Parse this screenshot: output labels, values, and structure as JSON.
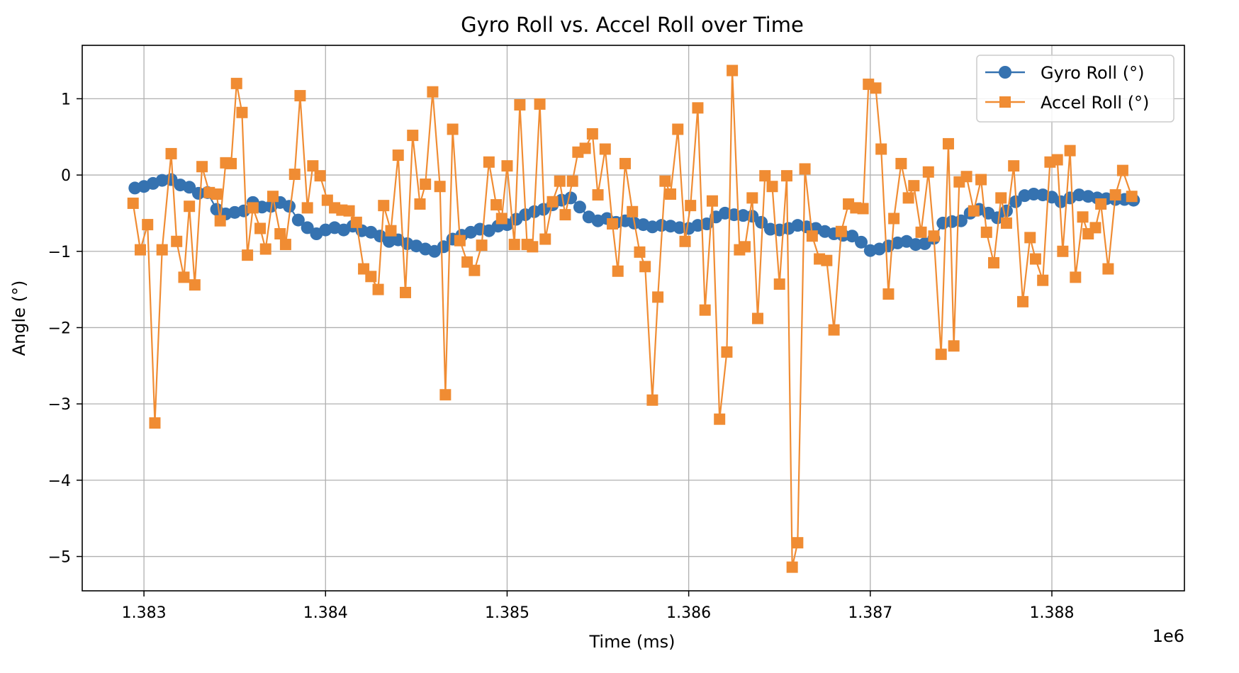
{
  "chart_data": {
    "type": "line",
    "title": "Gyro Roll vs. Accel Roll over Time",
    "xlabel": "Time (ms)",
    "ylabel": "Angle (°)",
    "x_offset_label": "1e6",
    "xlim": [
      1382.66,
      1388.73
    ],
    "ylim": [
      -5.45,
      1.7
    ],
    "x_ticks": [
      1383,
      1384,
      1385,
      1386,
      1387,
      1388
    ],
    "x_tick_labels": [
      "1.383",
      "1.384",
      "1.385",
      "1.386",
      "1.387",
      "1.388"
    ],
    "y_ticks": [
      1,
      0,
      -1,
      -2,
      -3,
      -4,
      -5
    ],
    "y_tick_labels": [
      "1",
      "0",
      "−1",
      "−2",
      "−3",
      "−4",
      "−5"
    ],
    "grid": true,
    "legend_position": "top-right",
    "series": [
      {
        "name": "Gyro Roll (°)",
        "color": "#3572b0",
        "marker": "circle",
        "points": [
          [
            1382.95,
            -0.17
          ],
          [
            1383.0,
            -0.15
          ],
          [
            1383.05,
            -0.11
          ],
          [
            1383.1,
            -0.07
          ],
          [
            1383.15,
            -0.06
          ],
          [
            1383.2,
            -0.13
          ],
          [
            1383.25,
            -0.16
          ],
          [
            1383.3,
            -0.24
          ],
          [
            1383.35,
            -0.23
          ],
          [
            1383.4,
            -0.45
          ],
          [
            1383.45,
            -0.51
          ],
          [
            1383.5,
            -0.49
          ],
          [
            1383.55,
            -0.47
          ],
          [
            1383.6,
            -0.36
          ],
          [
            1383.65,
            -0.42
          ],
          [
            1383.7,
            -0.41
          ],
          [
            1383.75,
            -0.36
          ],
          [
            1383.8,
            -0.41
          ],
          [
            1383.85,
            -0.59
          ],
          [
            1383.9,
            -0.69
          ],
          [
            1383.95,
            -0.77
          ],
          [
            1384.0,
            -0.72
          ],
          [
            1384.05,
            -0.69
          ],
          [
            1384.1,
            -0.72
          ],
          [
            1384.15,
            -0.67
          ],
          [
            1384.2,
            -0.73
          ],
          [
            1384.25,
            -0.75
          ],
          [
            1384.3,
            -0.8
          ],
          [
            1384.35,
            -0.87
          ],
          [
            1384.4,
            -0.85
          ],
          [
            1384.45,
            -0.9
          ],
          [
            1384.5,
            -0.93
          ],
          [
            1384.55,
            -0.97
          ],
          [
            1384.6,
            -1.0
          ],
          [
            1384.65,
            -0.94
          ],
          [
            1384.7,
            -0.84
          ],
          [
            1384.75,
            -0.79
          ],
          [
            1384.8,
            -0.75
          ],
          [
            1384.85,
            -0.71
          ],
          [
            1384.9,
            -0.73
          ],
          [
            1384.95,
            -0.67
          ],
          [
            1385.0,
            -0.65
          ],
          [
            1385.05,
            -0.58
          ],
          [
            1385.1,
            -0.52
          ],
          [
            1385.15,
            -0.48
          ],
          [
            1385.2,
            -0.45
          ],
          [
            1385.25,
            -0.39
          ],
          [
            1385.3,
            -0.33
          ],
          [
            1385.35,
            -0.3
          ],
          [
            1385.4,
            -0.42
          ],
          [
            1385.45,
            -0.55
          ],
          [
            1385.5,
            -0.6
          ],
          [
            1385.55,
            -0.57
          ],
          [
            1385.6,
            -0.62
          ],
          [
            1385.65,
            -0.6
          ],
          [
            1385.7,
            -0.63
          ],
          [
            1385.75,
            -0.65
          ],
          [
            1385.8,
            -0.68
          ],
          [
            1385.85,
            -0.66
          ],
          [
            1385.9,
            -0.67
          ],
          [
            1385.95,
            -0.69
          ],
          [
            1386.0,
            -0.7
          ],
          [
            1386.05,
            -0.66
          ],
          [
            1386.1,
            -0.64
          ],
          [
            1386.15,
            -0.55
          ],
          [
            1386.2,
            -0.5
          ],
          [
            1386.25,
            -0.52
          ],
          [
            1386.3,
            -0.53
          ],
          [
            1386.35,
            -0.54
          ],
          [
            1386.4,
            -0.62
          ],
          [
            1386.45,
            -0.71
          ],
          [
            1386.5,
            -0.72
          ],
          [
            1386.55,
            -0.7
          ],
          [
            1386.6,
            -0.66
          ],
          [
            1386.65,
            -0.68
          ],
          [
            1386.7,
            -0.7
          ],
          [
            1386.75,
            -0.74
          ],
          [
            1386.8,
            -0.77
          ],
          [
            1386.85,
            -0.79
          ],
          [
            1386.9,
            -0.8
          ],
          [
            1386.95,
            -0.88
          ],
          [
            1387.0,
            -0.99
          ],
          [
            1387.05,
            -0.97
          ],
          [
            1387.1,
            -0.93
          ],
          [
            1387.15,
            -0.89
          ],
          [
            1387.2,
            -0.87
          ],
          [
            1387.25,
            -0.91
          ],
          [
            1387.3,
            -0.9
          ],
          [
            1387.35,
            -0.83
          ],
          [
            1387.4,
            -0.63
          ],
          [
            1387.45,
            -0.61
          ],
          [
            1387.5,
            -0.6
          ],
          [
            1387.55,
            -0.5
          ],
          [
            1387.6,
            -0.45
          ],
          [
            1387.65,
            -0.5
          ],
          [
            1387.7,
            -0.56
          ],
          [
            1387.75,
            -0.47
          ],
          [
            1387.8,
            -0.35
          ],
          [
            1387.85,
            -0.27
          ],
          [
            1387.9,
            -0.25
          ],
          [
            1387.95,
            -0.26
          ],
          [
            1388.0,
            -0.29
          ],
          [
            1388.05,
            -0.35
          ],
          [
            1388.1,
            -0.3
          ],
          [
            1388.15,
            -0.26
          ],
          [
            1388.2,
            -0.28
          ],
          [
            1388.25,
            -0.3
          ],
          [
            1388.3,
            -0.31
          ],
          [
            1388.35,
            -0.32
          ],
          [
            1388.4,
            -0.32
          ],
          [
            1388.45,
            -0.33
          ]
        ]
      },
      {
        "name": "Accel Roll (°)",
        "color": "#f08c33",
        "marker": "square",
        "points": [
          [
            1382.94,
            -0.37
          ],
          [
            1382.98,
            -0.98
          ],
          [
            1383.02,
            -0.65
          ],
          [
            1383.06,
            -3.25
          ],
          [
            1383.1,
            -0.98
          ],
          [
            1383.15,
            0.28
          ],
          [
            1383.18,
            -0.87
          ],
          [
            1383.22,
            -1.34
          ],
          [
            1383.25,
            -0.41
          ],
          [
            1383.28,
            -1.44
          ],
          [
            1383.32,
            0.11
          ],
          [
            1383.36,
            -0.23
          ],
          [
            1383.4,
            -0.25
          ],
          [
            1383.42,
            -0.6
          ],
          [
            1383.45,
            0.16
          ],
          [
            1383.48,
            0.15
          ],
          [
            1383.51,
            1.2
          ],
          [
            1383.54,
            0.82
          ],
          [
            1383.57,
            -1.05
          ],
          [
            1383.6,
            -0.43
          ],
          [
            1383.64,
            -0.7
          ],
          [
            1383.67,
            -0.97
          ],
          [
            1383.71,
            -0.28
          ],
          [
            1383.75,
            -0.77
          ],
          [
            1383.78,
            -0.91
          ],
          [
            1383.83,
            0.01
          ],
          [
            1383.86,
            1.04
          ],
          [
            1383.9,
            -0.43
          ],
          [
            1383.93,
            0.12
          ],
          [
            1383.97,
            -0.01
          ],
          [
            1384.01,
            -0.33
          ],
          [
            1384.05,
            -0.43
          ],
          [
            1384.09,
            -0.46
          ],
          [
            1384.13,
            -0.47
          ],
          [
            1384.17,
            -0.62
          ],
          [
            1384.21,
            -1.23
          ],
          [
            1384.25,
            -1.33
          ],
          [
            1384.29,
            -1.5
          ],
          [
            1384.32,
            -0.4
          ],
          [
            1384.36,
            -0.73
          ],
          [
            1384.4,
            0.26
          ],
          [
            1384.44,
            -1.54
          ],
          [
            1384.48,
            0.52
          ],
          [
            1384.52,
            -0.38
          ],
          [
            1384.55,
            -0.12
          ],
          [
            1384.59,
            1.09
          ],
          [
            1384.63,
            -0.15
          ],
          [
            1384.66,
            -2.88
          ],
          [
            1384.7,
            0.6
          ],
          [
            1384.74,
            -0.86
          ],
          [
            1384.78,
            -1.14
          ],
          [
            1384.82,
            -1.25
          ],
          [
            1384.86,
            -0.92
          ],
          [
            1384.9,
            0.17
          ],
          [
            1384.94,
            -0.39
          ],
          [
            1384.97,
            -0.57
          ],
          [
            1385.0,
            0.12
          ],
          [
            1385.04,
            -0.91
          ],
          [
            1385.07,
            0.92
          ],
          [
            1385.11,
            -0.91
          ],
          [
            1385.14,
            -0.94
          ],
          [
            1385.18,
            0.93
          ],
          [
            1385.21,
            -0.84
          ],
          [
            1385.25,
            -0.35
          ],
          [
            1385.29,
            -0.08
          ],
          [
            1385.32,
            -0.52
          ],
          [
            1385.36,
            -0.08
          ],
          [
            1385.39,
            0.3
          ],
          [
            1385.43,
            0.35
          ],
          [
            1385.47,
            0.54
          ],
          [
            1385.5,
            -0.26
          ],
          [
            1385.54,
            0.34
          ],
          [
            1385.58,
            -0.64
          ],
          [
            1385.61,
            -1.26
          ],
          [
            1385.65,
            0.15
          ],
          [
            1385.69,
            -0.48
          ],
          [
            1385.73,
            -1.01
          ],
          [
            1385.76,
            -1.2
          ],
          [
            1385.8,
            -2.95
          ],
          [
            1385.83,
            -1.6
          ],
          [
            1385.87,
            -0.08
          ],
          [
            1385.9,
            -0.25
          ],
          [
            1385.94,
            0.6
          ],
          [
            1385.98,
            -0.87
          ],
          [
            1386.01,
            -0.4
          ],
          [
            1386.05,
            0.88
          ],
          [
            1386.09,
            -1.77
          ],
          [
            1386.13,
            -0.34
          ],
          [
            1386.17,
            -3.2
          ],
          [
            1386.21,
            -2.32
          ],
          [
            1386.24,
            1.37
          ],
          [
            1386.28,
            -0.98
          ],
          [
            1386.31,
            -0.94
          ],
          [
            1386.35,
            -0.3
          ],
          [
            1386.38,
            -1.88
          ],
          [
            1386.42,
            -0.01
          ],
          [
            1386.46,
            -0.15
          ],
          [
            1386.5,
            -1.43
          ],
          [
            1386.54,
            -0.01
          ],
          [
            1386.57,
            -5.14
          ],
          [
            1386.6,
            -4.82
          ],
          [
            1386.64,
            0.08
          ],
          [
            1386.68,
            -0.8
          ],
          [
            1386.72,
            -1.1
          ],
          [
            1386.76,
            -1.12
          ],
          [
            1386.8,
            -2.03
          ],
          [
            1386.84,
            -0.74
          ],
          [
            1386.88,
            -0.38
          ],
          [
            1386.92,
            -0.43
          ],
          [
            1386.96,
            -0.44
          ],
          [
            1386.99,
            1.19
          ],
          [
            1387.03,
            1.14
          ],
          [
            1387.06,
            0.34
          ],
          [
            1387.1,
            -1.56
          ],
          [
            1387.13,
            -0.57
          ],
          [
            1387.17,
            0.15
          ],
          [
            1387.21,
            -0.3
          ],
          [
            1387.24,
            -0.14
          ],
          [
            1387.28,
            -0.75
          ],
          [
            1387.32,
            0.04
          ],
          [
            1387.35,
            -0.8
          ],
          [
            1387.39,
            -2.35
          ],
          [
            1387.43,
            0.41
          ],
          [
            1387.46,
            -2.24
          ],
          [
            1387.49,
            -0.09
          ],
          [
            1387.53,
            -0.02
          ],
          [
            1387.57,
            -0.47
          ],
          [
            1387.61,
            -0.06
          ],
          [
            1387.64,
            -0.75
          ],
          [
            1387.68,
            -1.15
          ],
          [
            1387.72,
            -0.3
          ],
          [
            1387.75,
            -0.63
          ],
          [
            1387.79,
            0.12
          ],
          [
            1387.84,
            -1.66
          ],
          [
            1387.88,
            -0.82
          ],
          [
            1387.91,
            -1.1
          ],
          [
            1387.95,
            -1.38
          ],
          [
            1387.99,
            0.17
          ],
          [
            1388.03,
            0.2
          ],
          [
            1388.06,
            -1.0
          ],
          [
            1388.1,
            0.32
          ],
          [
            1388.13,
            -1.34
          ],
          [
            1388.17,
            -0.55
          ],
          [
            1388.2,
            -0.77
          ],
          [
            1388.24,
            -0.69
          ],
          [
            1388.27,
            -0.38
          ],
          [
            1388.31,
            -1.23
          ],
          [
            1388.35,
            -0.26
          ],
          [
            1388.39,
            0.06
          ],
          [
            1388.44,
            -0.28
          ]
        ]
      }
    ]
  }
}
